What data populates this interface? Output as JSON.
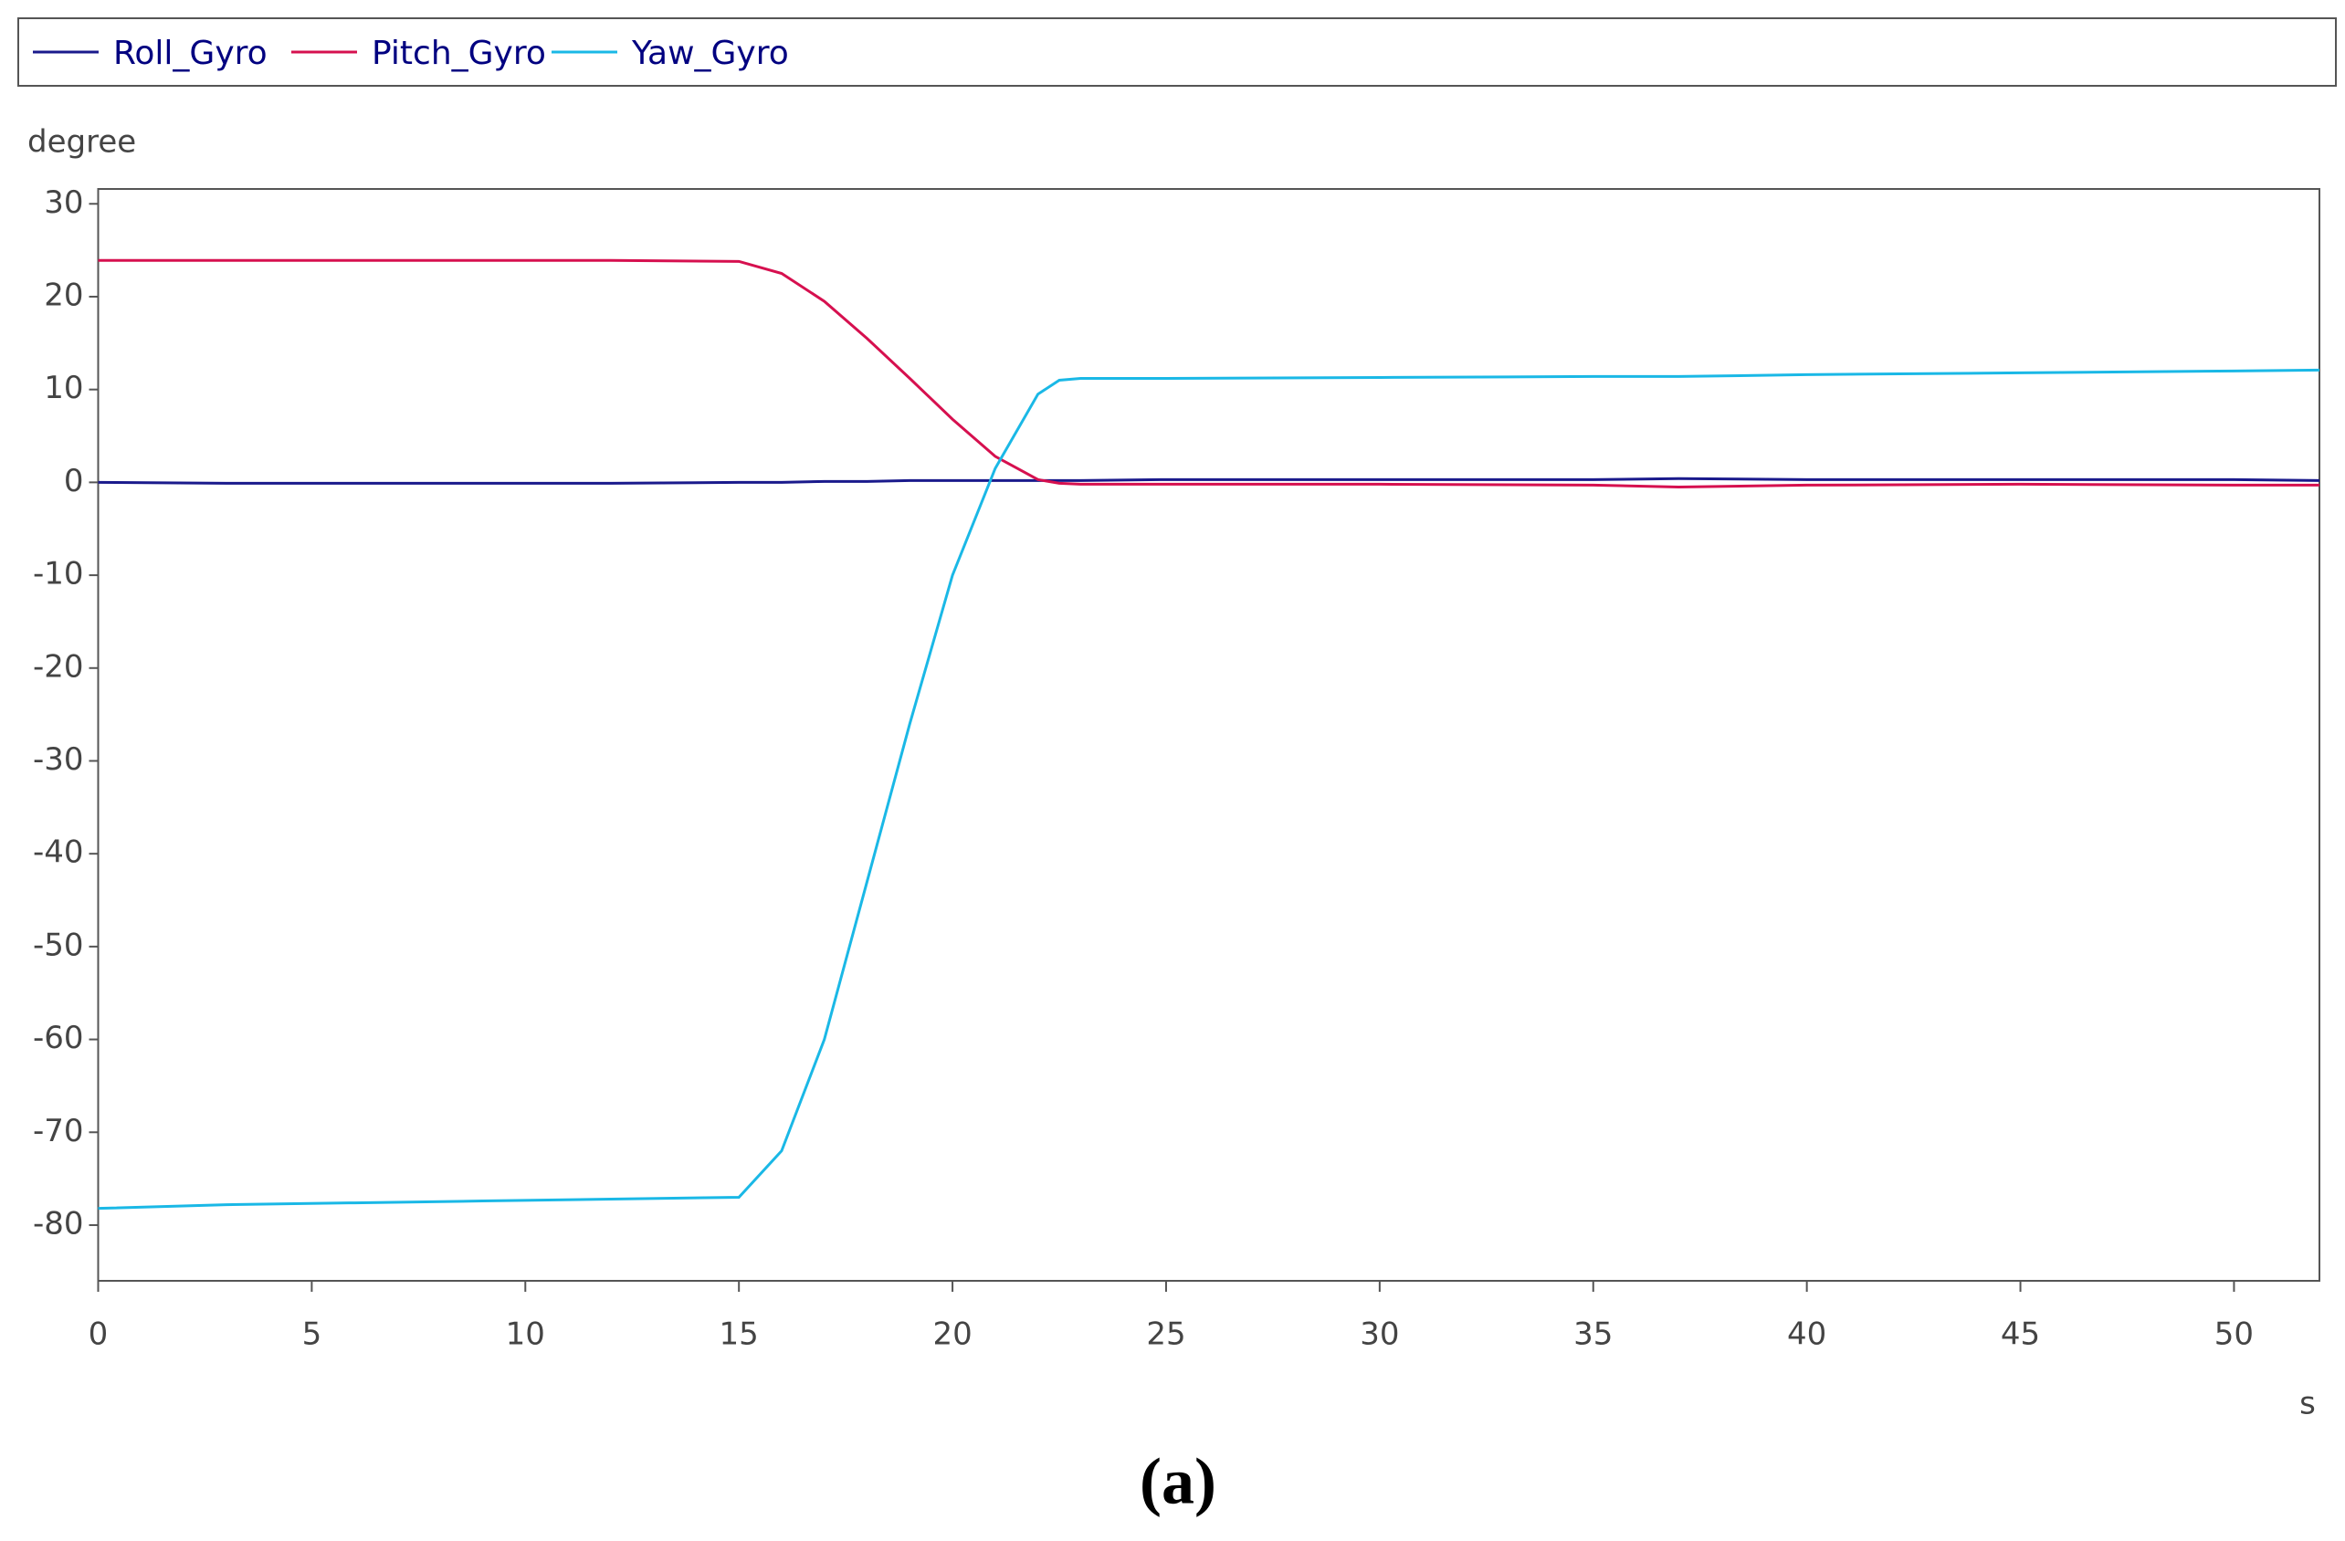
{
  "chart_data": {
    "type": "line",
    "y_label": "degree",
    "x_label": "s",
    "caption": "(a)",
    "x": [
      0,
      3,
      6,
      9,
      12,
      15,
      16,
      17,
      18,
      19,
      20,
      21,
      22,
      22.5,
      23,
      25,
      30,
      35,
      37,
      40,
      45,
      50,
      52
    ],
    "series": [
      {
        "name": "Roll_Gyro",
        "color": "#1a1a8c",
        "values": [
          0,
          -0.1,
          -0.1,
          -0.1,
          -0.1,
          0,
          0,
          0.1,
          0.1,
          0.2,
          0.2,
          0.2,
          0.2,
          0.2,
          0.2,
          0.3,
          0.3,
          0.3,
          0.4,
          0.3,
          0.3,
          0.3,
          0.2
        ]
      },
      {
        "name": "Pitch_Gyro",
        "color": "#d6104f",
        "values": [
          23.9,
          23.9,
          23.9,
          23.9,
          23.9,
          23.8,
          22.5,
          19.5,
          15.5,
          11.2,
          6.8,
          2.8,
          0.3,
          -0.1,
          -0.2,
          -0.2,
          -0.2,
          -0.3,
          -0.5,
          -0.3,
          -0.2,
          -0.3,
          -0.3
        ]
      },
      {
        "name": "Yaw_Gyro",
        "color": "#1ab8e6",
        "values": [
          -78.2,
          -77.8,
          -77.6,
          -77.4,
          -77.2,
          -77,
          -72,
          -60,
          -43,
          -26,
          -10,
          1.5,
          9.5,
          11,
          11.2,
          11.2,
          11.3,
          11.4,
          11.4,
          11.6,
          11.8,
          12,
          12.1
        ]
      }
    ],
    "xlim": [
      0,
      52
    ],
    "ylim": [
      -86,
      31.6
    ],
    "xticks": [
      0,
      5,
      10,
      15,
      20,
      25,
      30,
      35,
      40,
      45,
      50
    ],
    "yticks": [
      -80,
      -70,
      -60,
      -50,
      -40,
      -30,
      -20,
      -10,
      0,
      10,
      20,
      30
    ]
  }
}
